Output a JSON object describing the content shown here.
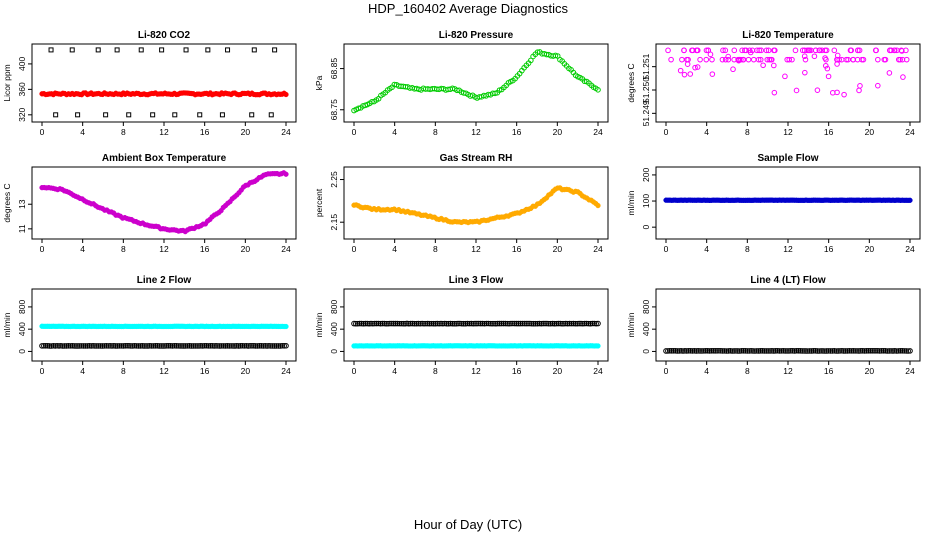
{
  "figure": {
    "title": "HDP_160402  Average Diagnostics",
    "xlabel": "Hour of Day (UTC)"
  },
  "chart_data": [
    {
      "type": "scatter",
      "title": "Li-820 CO2",
      "ylabel": "Licor ppm",
      "xticks": [
        "0",
        "4",
        "8",
        "12",
        "16",
        "20",
        "24"
      ],
      "xlim": [
        0,
        24
      ],
      "yticks": [
        "320",
        "360",
        "400"
      ],
      "ytick_values": [
        320,
        360,
        400
      ],
      "ylim": [
        315,
        425
      ],
      "series": [
        {
          "name": "co2-mean",
          "color": "#ff0000",
          "symbol": "filled",
          "baseline": 353,
          "noise": 3
        },
        {
          "name": "co2-max",
          "color": "#000000",
          "symbol": "open-square",
          "values": [
            422,
            422,
            422,
            422,
            422,
            422,
            422,
            422,
            422,
            422,
            422
          ]
        },
        {
          "name": "co2-min",
          "color": "#000000",
          "symbol": "open-square",
          "values": [
            320,
            320,
            320,
            320,
            320,
            320,
            320,
            320,
            320,
            320
          ]
        }
      ]
    },
    {
      "type": "scatter",
      "title": "Li-820 Pressure",
      "ylabel": "kPa",
      "xticks": [
        "0",
        "4",
        "8",
        "12",
        "16",
        "20",
        "24"
      ],
      "xlim": [
        0,
        24
      ],
      "yticks": [
        "68.75",
        "68.85"
      ],
      "ytick_values": [
        68.75,
        68.85
      ],
      "ylim": [
        68.73,
        68.9
      ],
      "series": [
        {
          "name": "pressure",
          "color": "#00cc00",
          "symbol": "open-circle",
          "x": [
            0,
            2,
            4,
            6,
            10,
            12,
            14,
            16,
            18,
            20,
            22,
            24
          ],
          "y": [
            68.75,
            68.77,
            68.81,
            68.8,
            68.8,
            68.78,
            68.79,
            68.83,
            68.89,
            68.88,
            68.83,
            68.8
          ]
        }
      ]
    },
    {
      "type": "scatter",
      "title": "Li-820 Temperature",
      "ylabel": "degrees C",
      "xticks": [
        "0",
        "4",
        "8",
        "12",
        "16",
        "20",
        "24"
      ],
      "xlim": [
        0,
        24
      ],
      "yticks": [
        "51.249",
        "51.250",
        "51.251"
      ],
      "ytick_values": [
        51.249,
        51.25,
        51.251
      ],
      "ylim": [
        51.2488,
        51.2518
      ],
      "series": [
        {
          "name": "temperature",
          "color": "#ff00ff",
          "symbol": "open-circle",
          "levels": [
            51.2517,
            51.2513
          ]
        }
      ]
    },
    {
      "type": "scatter",
      "title": "Ambient Box Temperature",
      "ylabel": "degrees C",
      "xticks": [
        "0",
        "4",
        "8",
        "12",
        "16",
        "20",
        "24"
      ],
      "xlim": [
        0,
        24
      ],
      "yticks": [
        "11",
        "13"
      ],
      "ytick_values": [
        11,
        13
      ],
      "ylim": [
        10.5,
        15.7
      ],
      "series": [
        {
          "name": "box-temp",
          "color": "#cc00cc",
          "symbol": "filled",
          "x": [
            0,
            2,
            4,
            6,
            8,
            10,
            12,
            14,
            16,
            18,
            20,
            22,
            24
          ],
          "y": [
            14.4,
            14.2,
            13.4,
            12.6,
            11.9,
            11.4,
            11.0,
            10.8,
            11.4,
            12.8,
            14.5,
            15.4,
            15.5
          ]
        }
      ]
    },
    {
      "type": "scatter",
      "title": "Gas Stream RH",
      "ylabel": "percent",
      "xticks": [
        "0",
        "4",
        "8",
        "12",
        "16",
        "20",
        "24"
      ],
      "xlim": [
        0,
        24
      ],
      "yticks": [
        "2.15",
        "2.25"
      ],
      "ytick_values": [
        2.15,
        2.25
      ],
      "ylim": [
        2.12,
        2.27
      ],
      "series": [
        {
          "name": "rh",
          "color": "#ffaa00",
          "symbol": "filled",
          "x": [
            0,
            2,
            4,
            6,
            8,
            10,
            12,
            14,
            16,
            18,
            20,
            22,
            24
          ],
          "y": [
            2.19,
            2.18,
            2.18,
            2.17,
            2.16,
            2.15,
            2.15,
            2.16,
            2.17,
            2.19,
            2.23,
            2.22,
            2.19
          ]
        }
      ]
    },
    {
      "type": "scatter",
      "title": "Sample Flow",
      "ylabel": "ml/min",
      "xticks": [
        "0",
        "4",
        "8",
        "12",
        "16",
        "20",
        "24"
      ],
      "xlim": [
        0,
        24
      ],
      "yticks": [
        "0",
        "100",
        "200"
      ],
      "ytick_values": [
        0,
        100,
        200
      ],
      "ylim": [
        -30,
        215
      ],
      "series": [
        {
          "name": "sample-flow",
          "color": "#0000cc",
          "symbol": "filled",
          "baseline": 103
        }
      ]
    },
    {
      "type": "scatter",
      "title": "Line 2 Flow",
      "ylabel": "ml/min",
      "xticks": [
        "0",
        "4",
        "8",
        "12",
        "16",
        "20",
        "24"
      ],
      "xlim": [
        0,
        24
      ],
      "yticks": [
        "0",
        "400",
        "800"
      ],
      "ytick_values": [
        0,
        400,
        800
      ],
      "ylim": [
        -100,
        1050
      ],
      "series": [
        {
          "name": "line2-high",
          "color": "#00ffff",
          "symbol": "filled",
          "baseline": 450
        },
        {
          "name": "line2-low",
          "color": "#000000",
          "symbol": "open-circle",
          "baseline": 100
        }
      ]
    },
    {
      "type": "scatter",
      "title": "Line 3 Flow",
      "ylabel": "ml/min",
      "xticks": [
        "0",
        "4",
        "8",
        "12",
        "16",
        "20",
        "24"
      ],
      "xlim": [
        0,
        24
      ],
      "yticks": [
        "0",
        "400",
        "800"
      ],
      "ytick_values": [
        0,
        400,
        800
      ],
      "ylim": [
        -100,
        1050
      ],
      "series": [
        {
          "name": "line3-high",
          "color": "#000000",
          "symbol": "open-circle",
          "baseline": 500
        },
        {
          "name": "line3-low",
          "color": "#00ffff",
          "symbol": "filled",
          "baseline": 100
        }
      ]
    },
    {
      "type": "scatter",
      "title": "Line 4 (LT) Flow",
      "ylabel": "ml/min",
      "xticks": [
        "0",
        "4",
        "8",
        "12",
        "16",
        "20",
        "24"
      ],
      "xlim": [
        0,
        24
      ],
      "yticks": [
        "0",
        "400",
        "800"
      ],
      "ytick_values": [
        0,
        400,
        800
      ],
      "ylim": [
        -100,
        1050
      ],
      "series": [
        {
          "name": "line4",
          "color": "#000000",
          "symbol": "open-circle",
          "baseline": 10
        }
      ]
    }
  ]
}
